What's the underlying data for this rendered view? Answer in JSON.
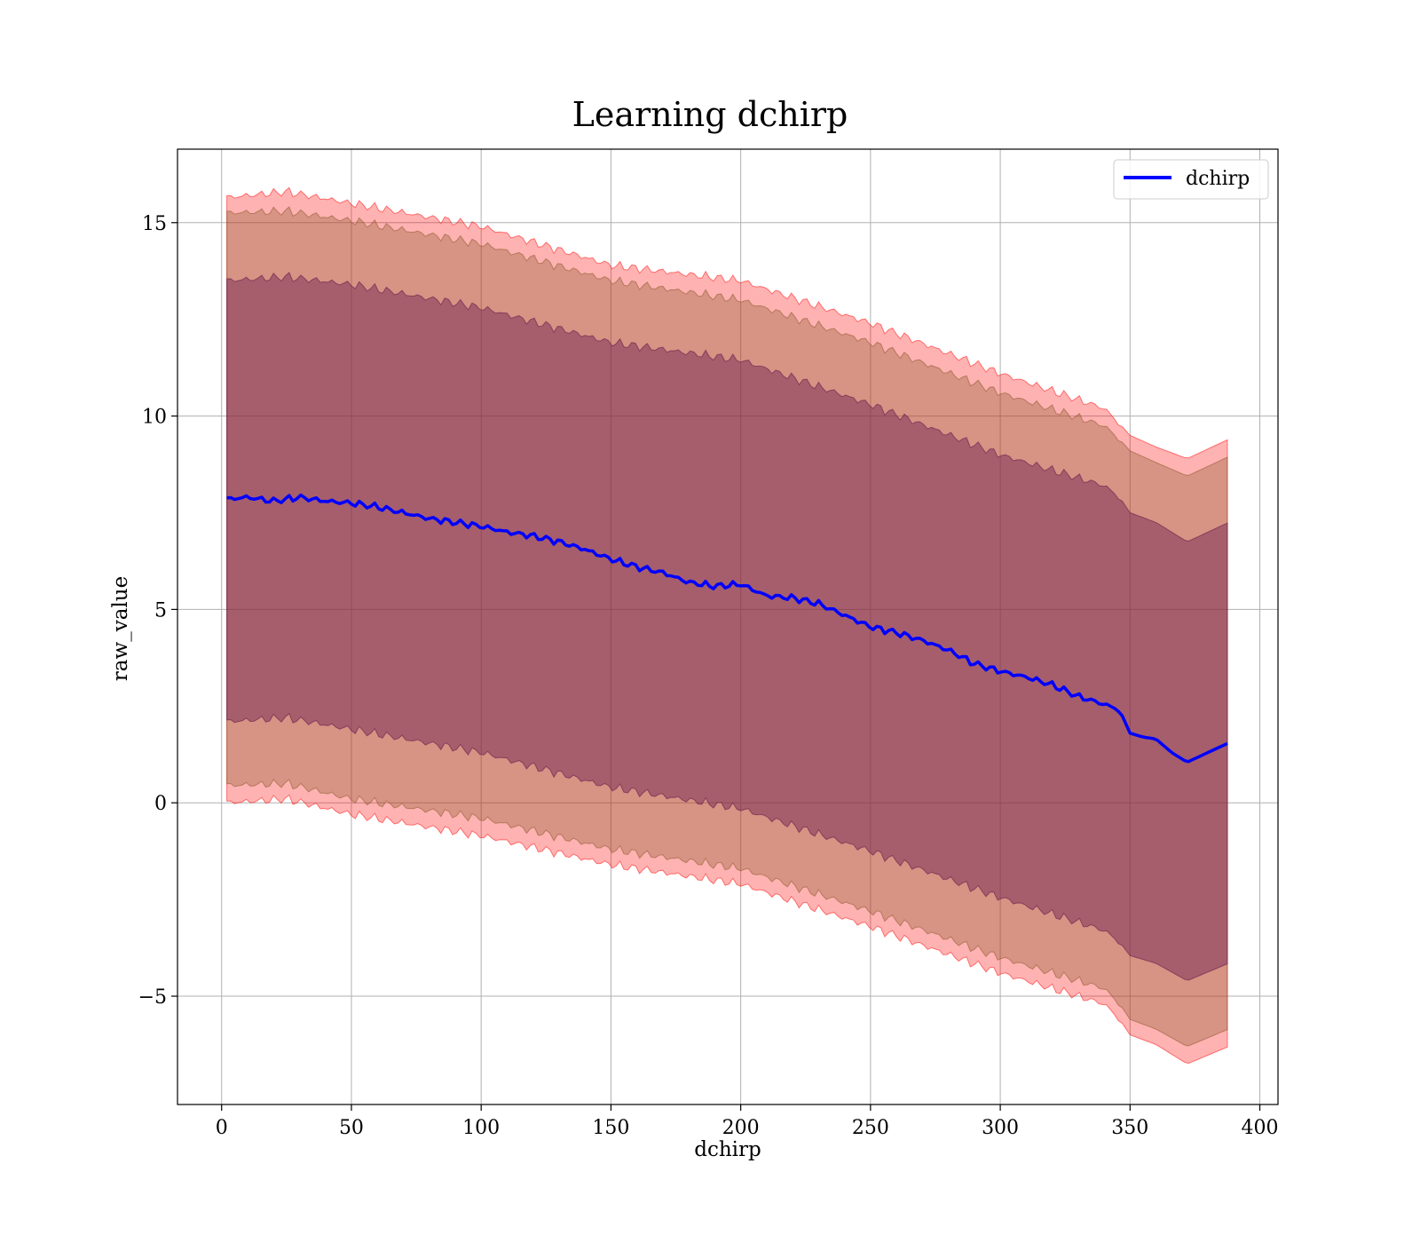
{
  "chart_data": {
    "type": "line",
    "title": "Learning dchirp",
    "xlabel": "dchirp",
    "ylabel": "raw_value",
    "xlim": [
      -17,
      407
    ],
    "ylim": [
      -7.8,
      16.9
    ],
    "x_ticks": [
      0,
      50,
      100,
      150,
      200,
      250,
      300,
      350,
      400
    ],
    "y_ticks": [
      -5,
      0,
      5,
      10,
      15
    ],
    "x_tick_labels": [
      "0",
      "50",
      "100",
      "150",
      "200",
      "250",
      "300",
      "350",
      "400"
    ],
    "y_tick_labels": [
      "−5",
      "0",
      "5",
      "10",
      "15"
    ],
    "grid": true,
    "legend": {
      "position": "top-right",
      "entries": [
        "dchirp"
      ]
    },
    "series": [
      {
        "name": "dchirp",
        "color": "#0000ff",
        "x": [
          2,
          10,
          20,
          30,
          40,
          50,
          60,
          70,
          80,
          90,
          100,
          110,
          120,
          130,
          140,
          150,
          160,
          170,
          180,
          190,
          200,
          210,
          220,
          230,
          240,
          250,
          260,
          270,
          280,
          290,
          300,
          310,
          320,
          330,
          340,
          346,
          350,
          355,
          360,
          366,
          372,
          380,
          388
        ],
        "values": [
          7.85,
          7.9,
          7.8,
          7.9,
          7.8,
          7.75,
          7.65,
          7.5,
          7.35,
          7.25,
          7.15,
          7.0,
          6.9,
          6.75,
          6.55,
          6.3,
          6.1,
          5.95,
          5.7,
          5.6,
          5.65,
          5.35,
          5.3,
          5.15,
          4.85,
          4.55,
          4.4,
          4.2,
          3.95,
          3.6,
          3.4,
          3.25,
          3.05,
          2.75,
          2.55,
          2.4,
          1.8,
          1.7,
          1.65,
          1.3,
          1.05,
          1.3,
          1.55
        ]
      }
    ],
    "bands": [
      {
        "name": "outer",
        "color": "#ff0000",
        "opacity": 0.3,
        "x": [
          2,
          25,
          50,
          100,
          150,
          200,
          250,
          300,
          340,
          346,
          350,
          360,
          372,
          388
        ],
        "upper": [
          15.65,
          15.8,
          15.5,
          14.9,
          13.9,
          13.5,
          12.4,
          11.1,
          10.2,
          9.8,
          9.5,
          9.2,
          8.9,
          9.4
        ],
        "lower": [
          0.0,
          0.1,
          -0.3,
          -0.85,
          -1.6,
          -2.1,
          -3.2,
          -4.4,
          -5.2,
          -5.6,
          -6.0,
          -6.25,
          -6.75,
          -6.3
        ]
      },
      {
        "name": "middle",
        "color": "#8c5a2c",
        "opacity": 0.35,
        "x": [
          2,
          25,
          50,
          100,
          150,
          200,
          250,
          300,
          340,
          346,
          350,
          360,
          372,
          388
        ],
        "upper": [
          15.25,
          15.3,
          15.05,
          14.45,
          13.5,
          13.0,
          11.9,
          10.6,
          9.75,
          9.4,
          9.1,
          8.8,
          8.45,
          8.95
        ],
        "lower": [
          0.45,
          0.5,
          0.1,
          -0.4,
          -1.2,
          -1.7,
          -2.8,
          -4.0,
          -4.8,
          -5.2,
          -5.6,
          -5.85,
          -6.3,
          -5.85
        ]
      },
      {
        "name": "inner",
        "color": "#6b2050",
        "opacity": 0.45,
        "x": [
          2,
          25,
          50,
          100,
          150,
          200,
          250,
          300,
          340,
          346,
          350,
          360,
          372,
          388
        ],
        "upper": [
          13.5,
          13.6,
          13.4,
          12.8,
          11.9,
          11.45,
          10.3,
          9.0,
          8.2,
          7.9,
          7.5,
          7.25,
          6.75,
          7.25
        ],
        "lower": [
          2.1,
          2.2,
          1.9,
          1.3,
          0.4,
          -0.15,
          -1.25,
          -2.45,
          -3.3,
          -3.6,
          -3.95,
          -4.15,
          -4.6,
          -4.15
        ]
      }
    ]
  }
}
